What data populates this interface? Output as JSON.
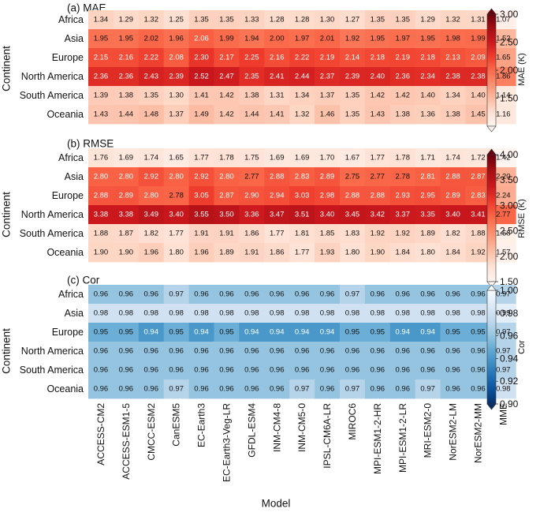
{
  "chart_data": [
    {
      "type": "heatmap",
      "title": "(a) MAE",
      "ylabel": "Continent",
      "xlabel": "",
      "colorbar_label": "MAE (K)",
      "colorbar_ticks": [
        "3.00",
        "2.50",
        "2.00",
        "1.50"
      ],
      "colorbar_range": [
        1.0,
        3.0
      ],
      "colormap": "Reds",
      "rows": [
        "Africa",
        "Asia",
        "Europe",
        "North America",
        "South America",
        "Oceania"
      ],
      "columns": [
        "ACCESS-CM2",
        "ACCESS-ESM1-5",
        "CMCC-ESM2",
        "CanESM5",
        "EC-Earth3",
        "EC-Earth3-Veg-LR",
        "GFDL-ESM4",
        "INM-CM4-8",
        "INM-CM5-0",
        "IPSL-CM6A-LR",
        "MIROC6",
        "MPI-ESM1-2-HR",
        "MPI-ESM1-2-LR",
        "MRI-ESM2-0",
        "NorESM2-LM",
        "NorESM2-MM",
        "MME"
      ],
      "values": [
        [
          1.34,
          1.29,
          1.32,
          1.25,
          1.35,
          1.35,
          1.33,
          1.28,
          1.28,
          1.3,
          1.27,
          1.35,
          1.35,
          1.29,
          1.32,
          1.31,
          1.07
        ],
        [
          1.95,
          1.95,
          2.02,
          1.96,
          2.06,
          1.99,
          1.94,
          2.0,
          1.97,
          2.01,
          1.92,
          1.95,
          1.97,
          1.95,
          1.98,
          1.99,
          1.52
        ],
        [
          2.15,
          2.16,
          2.22,
          2.08,
          2.3,
          2.17,
          2.25,
          2.16,
          2.22,
          2.19,
          2.14,
          2.18,
          2.19,
          2.18,
          2.13,
          2.09,
          1.65
        ],
        [
          2.36,
          2.36,
          2.43,
          2.39,
          2.52,
          2.47,
          2.35,
          2.41,
          2.44,
          2.37,
          2.39,
          2.4,
          2.36,
          2.34,
          2.38,
          2.38,
          1.86
        ],
        [
          1.39,
          1.38,
          1.35,
          1.3,
          1.41,
          1.42,
          1.38,
          1.31,
          1.34,
          1.37,
          1.35,
          1.42,
          1.42,
          1.4,
          1.34,
          1.4,
          1.14
        ],
        [
          1.43,
          1.44,
          1.48,
          1.37,
          1.49,
          1.42,
          1.44,
          1.41,
          1.32,
          1.46,
          1.35,
          1.43,
          1.38,
          1.36,
          1.38,
          1.45,
          1.16
        ]
      ]
    },
    {
      "type": "heatmap",
      "title": "(b) RMSE",
      "ylabel": "Continent",
      "xlabel": "",
      "colorbar_label": "RMSE (K)",
      "colorbar_ticks": [
        "4.00",
        "3.50",
        "3.00",
        "2.50",
        "2.00",
        "1.50"
      ],
      "colorbar_range": [
        1.5,
        4.0
      ],
      "colormap": "Reds",
      "rows": [
        "Africa",
        "Asia",
        "Europe",
        "North America",
        "South America",
        "Oceania"
      ],
      "columns": [
        "ACCESS-CM2",
        "ACCESS-ESM1-5",
        "CMCC-ESM2",
        "CanESM5",
        "EC-Earth3",
        "EC-Earth3-Veg-LR",
        "GFDL-ESM4",
        "INM-CM4-8",
        "INM-CM5-0",
        "IPSL-CM6A-LR",
        "MIROC6",
        "MPI-ESM1-2-HR",
        "MPI-ESM1-2-LR",
        "MRI-ESM2-0",
        "NorESM2-LM",
        "NorESM2-MM",
        "MME"
      ],
      "values": [
        [
          1.76,
          1.69,
          1.74,
          1.65,
          1.77,
          1.78,
          1.75,
          1.69,
          1.69,
          1.7,
          1.67,
          1.77,
          1.78,
          1.71,
          1.74,
          1.72,
          1.42
        ],
        [
          2.8,
          2.8,
          2.92,
          2.8,
          2.92,
          2.8,
          2.77,
          2.88,
          2.83,
          2.89,
          2.75,
          2.77,
          2.78,
          2.81,
          2.88,
          2.87,
          2.2
        ],
        [
          2.88,
          2.89,
          2.8,
          2.78,
          3.05,
          2.87,
          2.9,
          2.94,
          3.03,
          2.98,
          2.88,
          2.88,
          2.93,
          2.95,
          2.89,
          2.83,
          2.24
        ],
        [
          3.38,
          3.38,
          3.49,
          3.4,
          3.55,
          3.5,
          3.36,
          3.47,
          3.51,
          3.4,
          3.45,
          3.42,
          3.37,
          3.35,
          3.4,
          3.41,
          2.77
        ],
        [
          1.88,
          1.87,
          1.82,
          1.77,
          1.91,
          1.91,
          1.86,
          1.77,
          1.81,
          1.85,
          1.83,
          1.92,
          1.92,
          1.89,
          1.82,
          1.88,
          1.58
        ],
        [
          1.9,
          1.9,
          1.96,
          1.8,
          1.96,
          1.89,
          1.91,
          1.86,
          1.77,
          1.93,
          1.8,
          1.9,
          1.84,
          1.8,
          1.84,
          1.92,
          1.57
        ]
      ]
    },
    {
      "type": "heatmap",
      "title": "(c) Cor",
      "ylabel": "Continent",
      "xlabel": "Model",
      "colorbar_label": "Cor",
      "colorbar_ticks": [
        "1.00",
        "0.98",
        "0.96",
        "0.94",
        "0.92",
        "0.90"
      ],
      "colorbar_range": [
        0.9,
        1.0
      ],
      "colormap": "Blues_r",
      "rows": [
        "Africa",
        "Asia",
        "Europe",
        "North America",
        "South America",
        "Oceania"
      ],
      "columns": [
        "ACCESS-CM2",
        "ACCESS-ESM1-5",
        "CMCC-ESM2",
        "CanESM5",
        "EC-Earth3",
        "EC-Earth3-Veg-LR",
        "GFDL-ESM4",
        "INM-CM4-8",
        "INM-CM5-0",
        "IPSL-CM6A-LR",
        "MIROC6",
        "MPI-ESM1-2-HR",
        "MPI-ESM1-2-LR",
        "MRI-ESM2-0",
        "NorESM2-LM",
        "NorESM2-MM",
        "MME"
      ],
      "values": [
        [
          0.96,
          0.96,
          0.96,
          0.97,
          0.96,
          0.96,
          0.96,
          0.96,
          0.96,
          0.96,
          0.97,
          0.96,
          0.96,
          0.96,
          0.96,
          0.96,
          0.97
        ],
        [
          0.98,
          0.98,
          0.98,
          0.98,
          0.98,
          0.98,
          0.98,
          0.98,
          0.98,
          0.98,
          0.98,
          0.98,
          0.98,
          0.98,
          0.98,
          0.98,
          0.99
        ],
        [
          0.95,
          0.95,
          0.94,
          0.95,
          0.94,
          0.95,
          0.94,
          0.94,
          0.94,
          0.94,
          0.95,
          0.95,
          0.94,
          0.94,
          0.95,
          0.95,
          0.97
        ],
        [
          0.96,
          0.96,
          0.96,
          0.96,
          0.96,
          0.96,
          0.96,
          0.96,
          0.96,
          0.96,
          0.96,
          0.96,
          0.96,
          0.96,
          0.96,
          0.96,
          0.97
        ],
        [
          0.96,
          0.96,
          0.96,
          0.96,
          0.96,
          0.96,
          0.96,
          0.96,
          0.96,
          0.96,
          0.96,
          0.96,
          0.96,
          0.96,
          0.96,
          0.96,
          0.97
        ],
        [
          0.96,
          0.96,
          0.96,
          0.97,
          0.96,
          0.96,
          0.96,
          0.96,
          0.97,
          0.96,
          0.97,
          0.96,
          0.96,
          0.97,
          0.96,
          0.96,
          0.98
        ]
      ]
    }
  ]
}
